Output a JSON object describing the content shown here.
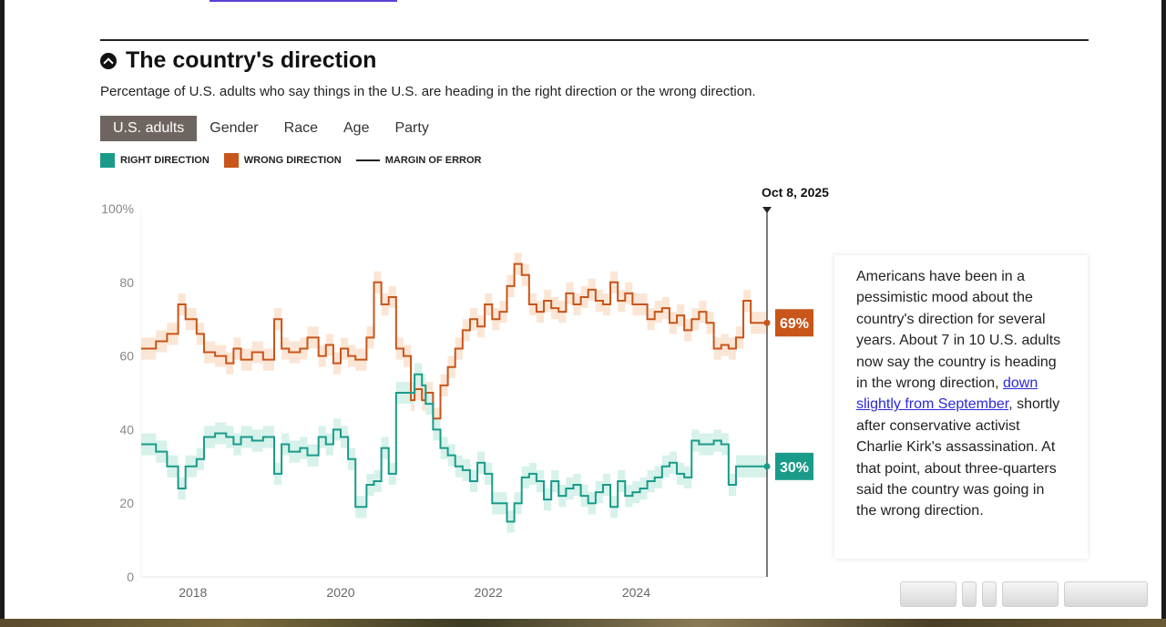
{
  "header": {
    "title": "The country's direction",
    "subtitle": "Percentage of U.S. adults who say things in the U.S. are heading in the right direction or the wrong direction."
  },
  "tabs": [
    {
      "label": "U.S. adults",
      "active": true
    },
    {
      "label": "Gender",
      "active": false
    },
    {
      "label": "Race",
      "active": false
    },
    {
      "label": "Age",
      "active": false
    },
    {
      "label": "Party",
      "active": false
    }
  ],
  "legend": {
    "right_label": "RIGHT DIRECTION",
    "wrong_label": "WRONG DIRECTION",
    "moe_label": "MARGIN OF ERROR"
  },
  "colors": {
    "right": "#1a9b8a",
    "right_band": "#d6f2ea",
    "wrong": "#c8551a",
    "wrong_band": "#fbe6d6",
    "active_tab": "#6e6560"
  },
  "annotation": {
    "text_before": "Americans have been in a pessimistic mood about the country's direction for several years. About 7 in 10 U.S. adults now say the country is heading in the wrong direction, ",
    "link_text": "down slightly from September",
    "text_after": ", shortly after conservative activist Charlie Kirk's assassination. At that point, about three-quarters said the country was going in the wrong direction."
  },
  "chart_data": {
    "type": "line",
    "title": "The country's direction",
    "marker_label": "Oct 8, 2025",
    "ylim": [
      0,
      100
    ],
    "yticks": [
      "100%",
      "80",
      "60",
      "40",
      "20",
      "0"
    ],
    "xticks": [
      "2018",
      "2020",
      "2022",
      "2024"
    ],
    "xlim": [
      2017.3,
      2025.77
    ],
    "end_labels": {
      "wrong": "69%",
      "right": "30%"
    },
    "series": [
      {
        "name": "WRONG DIRECTION",
        "x": [
          2017.3,
          2017.5,
          2017.65,
          2017.8,
          2017.9,
          2018.05,
          2018.15,
          2018.3,
          2018.45,
          2018.55,
          2018.65,
          2018.8,
          2018.95,
          2019.1,
          2019.2,
          2019.3,
          2019.45,
          2019.55,
          2019.7,
          2019.8,
          2019.9,
          2020.0,
          2020.1,
          2020.2,
          2020.35,
          2020.45,
          2020.55,
          2020.65,
          2020.75,
          2020.85,
          2020.95,
          2021.0,
          2021.1,
          2021.15,
          2021.25,
          2021.35,
          2021.45,
          2021.55,
          2021.65,
          2021.75,
          2021.85,
          2021.95,
          2022.05,
          2022.15,
          2022.25,
          2022.35,
          2022.45,
          2022.55,
          2022.65,
          2022.75,
          2022.85,
          2022.95,
          2023.05,
          2023.15,
          2023.25,
          2023.35,
          2023.45,
          2023.55,
          2023.65,
          2023.75,
          2023.85,
          2023.95,
          2024.05,
          2024.15,
          2024.25,
          2024.35,
          2024.45,
          2024.55,
          2024.65,
          2024.75,
          2024.85,
          2024.95,
          2025.05,
          2025.15,
          2025.25,
          2025.35,
          2025.45,
          2025.55,
          2025.65,
          2025.75
        ],
        "values": [
          62,
          64,
          66,
          74,
          70,
          66,
          61,
          60,
          58,
          62,
          59,
          61,
          59,
          70,
          62,
          61,
          62,
          65,
          60,
          63,
          58,
          62,
          60,
          59,
          65,
          80,
          74,
          76,
          62,
          60,
          48,
          51,
          48,
          50,
          43,
          52,
          57,
          62,
          67,
          70,
          68,
          74,
          70,
          72,
          79,
          85,
          82,
          74,
          72,
          75,
          73,
          72,
          77,
          74,
          76,
          78,
          75,
          74,
          80,
          75,
          77,
          74,
          74,
          70,
          72,
          73,
          69,
          71,
          67,
          70,
          72,
          69,
          62,
          63,
          62,
          65,
          75,
          69,
          69,
          69
        ]
      },
      {
        "name": "RIGHT DIRECTION",
        "x": [
          2017.3,
          2017.5,
          2017.65,
          2017.8,
          2017.9,
          2018.05,
          2018.15,
          2018.3,
          2018.45,
          2018.55,
          2018.65,
          2018.8,
          2018.95,
          2019.1,
          2019.2,
          2019.3,
          2019.45,
          2019.55,
          2019.7,
          2019.8,
          2019.9,
          2020.0,
          2020.1,
          2020.2,
          2020.35,
          2020.45,
          2020.55,
          2020.65,
          2020.75,
          2020.85,
          2020.95,
          2021.0,
          2021.1,
          2021.15,
          2021.25,
          2021.35,
          2021.45,
          2021.55,
          2021.65,
          2021.75,
          2021.85,
          2021.95,
          2022.05,
          2022.15,
          2022.25,
          2022.35,
          2022.45,
          2022.55,
          2022.65,
          2022.75,
          2022.85,
          2022.95,
          2023.05,
          2023.15,
          2023.25,
          2023.35,
          2023.45,
          2023.55,
          2023.65,
          2023.75,
          2023.85,
          2023.95,
          2024.05,
          2024.15,
          2024.25,
          2024.35,
          2024.45,
          2024.55,
          2024.65,
          2024.75,
          2024.85,
          2024.95,
          2025.05,
          2025.15,
          2025.25,
          2025.35,
          2025.45,
          2025.55,
          2025.65,
          2025.75
        ],
        "values": [
          36,
          34,
          30,
          24,
          30,
          32,
          38,
          39,
          38,
          36,
          38,
          37,
          38,
          28,
          36,
          34,
          35,
          33,
          38,
          36,
          40,
          38,
          32,
          19,
          25,
          26,
          35,
          28,
          50,
          50,
          50,
          55,
          52,
          47,
          40,
          35,
          33,
          30,
          29,
          26,
          31,
          28,
          20,
          20,
          15,
          20,
          27,
          28,
          26,
          21,
          26,
          22,
          24,
          25,
          22,
          20,
          23,
          25,
          19,
          26,
          22,
          23,
          24,
          26,
          27,
          30,
          31,
          28,
          27,
          37,
          36,
          36,
          37,
          36,
          25,
          30,
          30,
          30,
          30,
          30
        ]
      }
    ]
  }
}
